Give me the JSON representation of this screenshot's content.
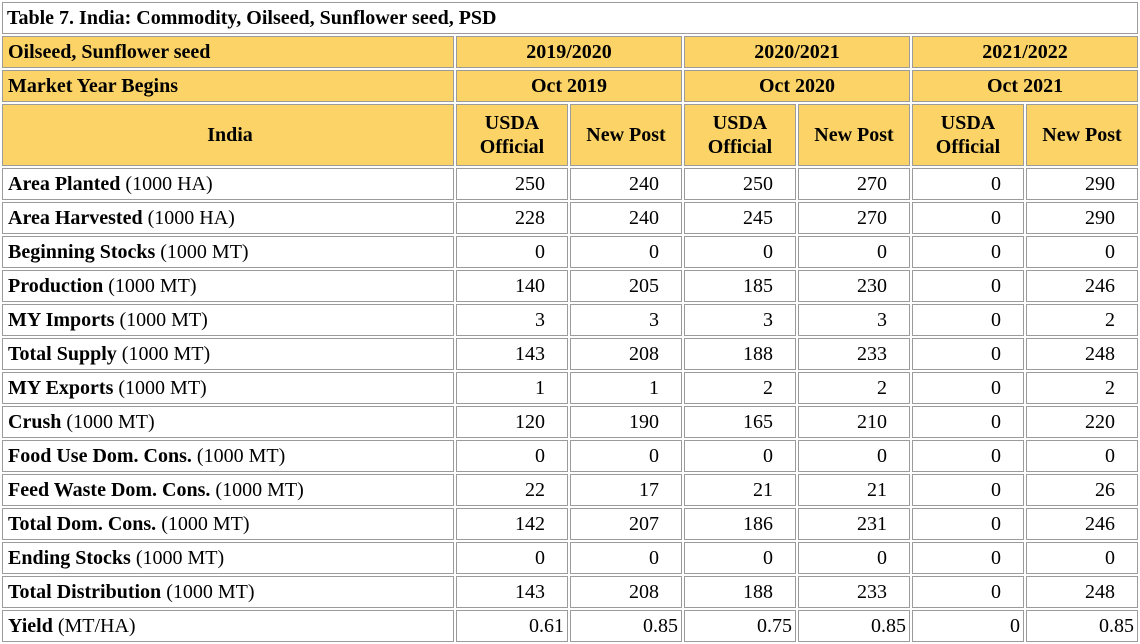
{
  "title": "Table 7. India: Commodity, Oilseed, Sunflower seed, PSD",
  "colors": {
    "header_bg": "#FBD366",
    "border_gray": "#9B9B9B",
    "text": "#000000",
    "cell_bg": "#FFFFFF"
  },
  "table": {
    "commodity_label": "Oilseed, Sunflower seed",
    "market_year_label": "Market Year Begins",
    "country_label": "India",
    "years": [
      "2019/2020",
      "2020/2021",
      "2021/2022"
    ],
    "market_year_begins": [
      "Oct 2019",
      "Oct 2020",
      "Oct 2021"
    ],
    "source_columns": [
      "USDA Official",
      "New Post"
    ],
    "rows": [
      {
        "name": "Area Planted",
        "unit": "(1000 HA)",
        "values": [
          "250",
          "240",
          "250",
          "270",
          "0",
          "290"
        ]
      },
      {
        "name": "Area Harvested",
        "unit": "(1000 HA)",
        "values": [
          "228",
          "240",
          "245",
          "270",
          "0",
          "290"
        ]
      },
      {
        "name": "Beginning Stocks",
        "unit": "(1000 MT)",
        "values": [
          "0",
          "0",
          "0",
          "0",
          "0",
          "0"
        ]
      },
      {
        "name": "Production",
        "unit": "(1000 MT)",
        "values": [
          "140",
          "205",
          "185",
          "230",
          "0",
          "246"
        ]
      },
      {
        "name": "MY Imports",
        "unit": "(1000 MT)",
        "values": [
          "3",
          "3",
          "3",
          "3",
          "0",
          "2"
        ]
      },
      {
        "name": "Total Supply",
        "unit": "(1000 MT)",
        "values": [
          "143",
          "208",
          "188",
          "233",
          "0",
          "248"
        ]
      },
      {
        "name": "MY Exports",
        "unit": "(1000 MT)",
        "values": [
          "1",
          "1",
          "2",
          "2",
          "0",
          "2"
        ]
      },
      {
        "name": "Crush",
        "unit": "(1000 MT)",
        "values": [
          "120",
          "190",
          "165",
          "210",
          "0",
          "220"
        ]
      },
      {
        "name": "Food Use Dom. Cons.",
        "unit": "(1000 MT)",
        "values": [
          "0",
          "0",
          "0",
          "0",
          "0",
          "0"
        ]
      },
      {
        "name": "Feed Waste Dom. Cons.",
        "unit": "(1000 MT)",
        "values": [
          "22",
          "17",
          "21",
          "21",
          "0",
          "26"
        ]
      },
      {
        "name": "Total Dom. Cons.",
        "unit": "(1000 MT)",
        "values": [
          "142",
          "207",
          "186",
          "231",
          "0",
          "246"
        ]
      },
      {
        "name": "Ending Stocks",
        "unit": "(1000 MT)",
        "values": [
          "0",
          "0",
          "0",
          "0",
          "0",
          "0"
        ]
      },
      {
        "name": "Total Distribution",
        "unit": "(1000 MT)",
        "values": [
          "143",
          "208",
          "188",
          "233",
          "0",
          "248"
        ]
      },
      {
        "name": "Yield",
        "unit": "(MT/HA)",
        "values": [
          "0.61",
          "0.85",
          "0.75",
          "0.85",
          "0",
          "0.85"
        ]
      }
    ]
  }
}
